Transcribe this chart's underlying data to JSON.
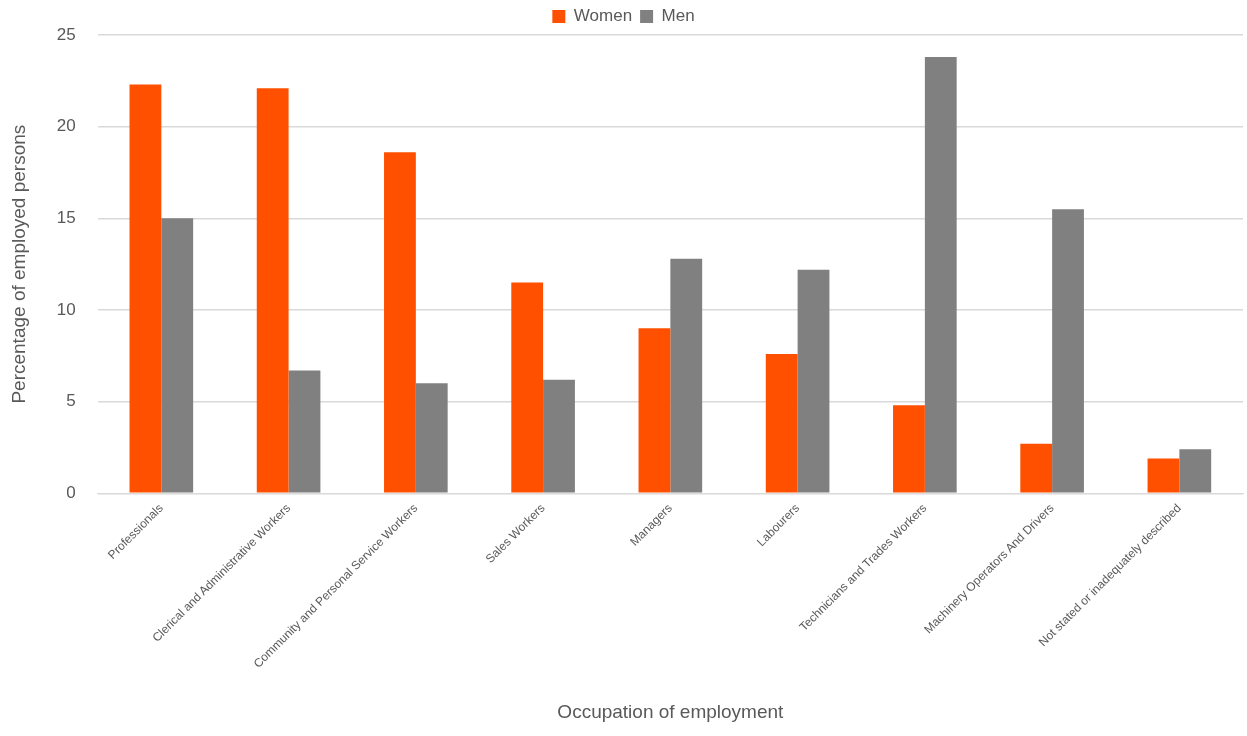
{
  "chart_data": {
    "type": "bar",
    "xlabel": "Occupation of employment",
    "ylabel": "Percentage of employed persons",
    "categories": [
      "Professionals",
      "Clerical and Administrative Workers",
      "Community and Personal Service Workers",
      "Sales Workers",
      "Managers",
      "Labourers",
      "Technicians and Trades Workers",
      "Machinery Operators And Drivers",
      "Not stated or inadequately described"
    ],
    "series": [
      {
        "name": "Women",
        "color": "#ff5000",
        "values": [
          22.3,
          22.1,
          18.6,
          11.5,
          9.0,
          7.6,
          4.8,
          2.7,
          1.9
        ]
      },
      {
        "name": "Men",
        "color": "#808080",
        "values": [
          15.0,
          6.7,
          6.0,
          6.2,
          12.8,
          12.2,
          23.8,
          15.5,
          2.4
        ]
      }
    ],
    "ylim": [
      0,
      25
    ],
    "yticks": [
      0,
      5,
      10,
      15,
      20,
      25
    ],
    "grid": "y",
    "legend": "top"
  }
}
